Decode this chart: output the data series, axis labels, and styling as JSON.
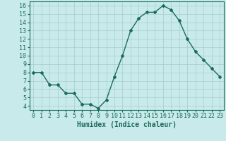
{
  "x": [
    0,
    1,
    2,
    3,
    4,
    5,
    6,
    7,
    8,
    9,
    10,
    11,
    12,
    13,
    14,
    15,
    16,
    17,
    18,
    19,
    20,
    21,
    22,
    23
  ],
  "y": [
    8,
    8,
    6.5,
    6.5,
    5.5,
    5.5,
    4.2,
    4.2,
    3.7,
    4.7,
    7.5,
    10.0,
    13.0,
    14.5,
    15.2,
    15.2,
    16.0,
    15.5,
    14.2,
    12.0,
    10.5,
    9.5,
    8.5,
    7.5
  ],
  "line_color": "#1a6b5a",
  "marker": "D",
  "marker_size": 2,
  "bg_color": "#c8eaea",
  "grid_color": "#a8cccc",
  "xlabel": "Humidex (Indice chaleur)",
  "xlim": [
    -0.5,
    23.5
  ],
  "ylim": [
    3.5,
    16.5
  ],
  "yticks": [
    4,
    5,
    6,
    7,
    8,
    9,
    10,
    11,
    12,
    13,
    14,
    15,
    16
  ],
  "xticks": [
    0,
    1,
    2,
    3,
    4,
    5,
    6,
    7,
    8,
    9,
    10,
    11,
    12,
    13,
    14,
    15,
    16,
    17,
    18,
    19,
    20,
    21,
    22,
    23
  ],
  "tick_color": "#1a6b5a",
  "xlabel_fontsize": 7,
  "tick_fontsize": 6
}
